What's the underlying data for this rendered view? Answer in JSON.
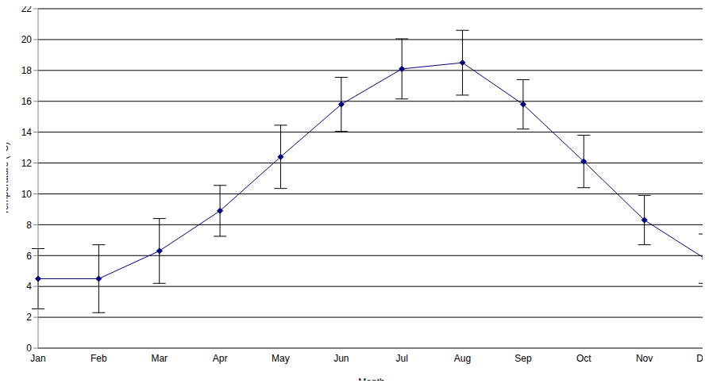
{
  "chart_data": {
    "type": "line",
    "x_label": "Month",
    "y_label": "Temperature (°C)",
    "categories": [
      "Jan",
      "Feb",
      "Mar",
      "Apr",
      "May",
      "Jun",
      "Jul",
      "Aug",
      "Sep",
      "Oct",
      "Nov",
      "Dec"
    ],
    "values": [
      4.5,
      4.5,
      6.3,
      8.9,
      12.4,
      15.8,
      18.1,
      18.5,
      15.8,
      12.1,
      8.3,
      5.8
    ],
    "errors": [
      1.95,
      2.2,
      2.1,
      1.65,
      2.05,
      1.75,
      1.95,
      2.1,
      1.6,
      1.7,
      1.6,
      1.6
    ],
    "color": "#000080",
    "marker": "diamond",
    "ylim": [
      0,
      22
    ],
    "yticks": [
      0,
      2,
      4,
      6,
      8,
      10,
      12,
      14,
      16,
      18,
      20,
      22
    ],
    "grid": true
  }
}
